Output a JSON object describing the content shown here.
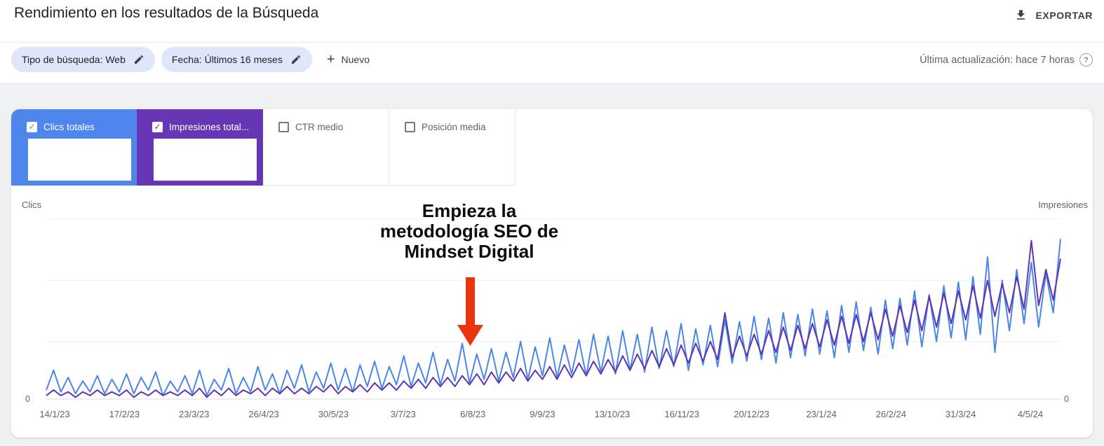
{
  "header": {
    "title": "Rendimiento en los resultados de la Búsqueda",
    "export_label": "EXPORTAR"
  },
  "filters": {
    "chips": [
      {
        "label": "Tipo de búsqueda: Web"
      },
      {
        "label": "Fecha: Últimos 16 meses"
      }
    ],
    "new_button_label": "Nuevo",
    "last_update": "Última actualización: hace 7 horas"
  },
  "metric_cards": [
    {
      "label": "Clics totales",
      "checked": true,
      "color": "#4e86ec",
      "value_redacted": true
    },
    {
      "label": "Impresiones total...",
      "checked": true,
      "color": "#6636b4",
      "value_redacted": true
    },
    {
      "label": "CTR medio",
      "checked": false
    },
    {
      "label": "Posición media",
      "checked": false
    }
  ],
  "chart_data": {
    "type": "line",
    "left_axis_label": "Clics",
    "right_axis_label": "Impresiones",
    "y_origin_label": "0",
    "ylim": [
      0,
      100
    ],
    "grid": true,
    "gridline_values": [
      0,
      32,
      66,
      100
    ],
    "x_labels": [
      "14/1/23",
      "17/2/23",
      "23/3/23",
      "26/4/23",
      "30/5/23",
      "3/7/23",
      "6/8/23",
      "9/9/23",
      "13/10/23",
      "16/11/23",
      "20/12/23",
      "23/1/24",
      "26/2/24",
      "31/3/24",
      "4/5/24"
    ],
    "series": [
      {
        "name": "Clics totales",
        "color": "#4a86e8",
        "values": [
          5,
          16,
          4,
          12,
          3,
          10,
          4,
          13,
          3,
          11,
          4,
          14,
          3,
          12,
          5,
          15,
          2,
          10,
          4,
          13,
          3,
          16,
          2,
          11,
          5,
          17,
          3,
          12,
          4,
          18,
          5,
          14,
          3,
          16,
          6,
          19,
          4,
          15,
          6,
          20,
          5,
          17,
          4,
          19,
          7,
          21,
          6,
          18,
          8,
          24,
          7,
          20,
          9,
          26,
          8,
          22,
          10,
          31,
          9,
          25,
          11,
          28,
          10,
          26,
          12,
          32,
          11,
          29,
          13,
          34,
          12,
          30,
          14,
          33,
          13,
          36,
          15,
          35,
          14,
          38,
          16,
          36,
          15,
          40,
          17,
          38,
          18,
          42,
          16,
          39,
          19,
          41,
          18,
          44,
          20,
          43,
          21,
          46,
          22,
          45,
          20,
          48,
          23,
          47,
          24,
          50,
          25,
          49,
          23,
          52,
          26,
          54,
          27,
          51,
          25,
          55,
          28,
          56,
          30,
          60,
          29,
          58,
          32,
          63,
          34,
          65,
          33,
          68,
          36,
          79,
          26,
          66,
          38,
          72,
          42,
          76,
          40,
          70,
          48,
          89
        ]
      },
      {
        "name": "Impresiones totales",
        "color": "#5e35b1",
        "values": [
          2,
          5,
          2,
          4,
          1,
          4,
          2,
          5,
          2,
          4,
          2,
          5,
          1,
          4,
          2,
          5,
          2,
          4,
          2,
          5,
          2,
          6,
          1,
          5,
          2,
          6,
          2,
          5,
          3,
          6,
          2,
          6,
          3,
          7,
          3,
          6,
          3,
          7,
          4,
          8,
          3,
          7,
          4,
          8,
          4,
          9,
          5,
          9,
          5,
          10,
          6,
          11,
          6,
          12,
          7,
          12,
          7,
          13,
          8,
          14,
          8,
          15,
          9,
          15,
          10,
          17,
          10,
          16,
          11,
          18,
          11,
          19,
          12,
          20,
          13,
          21,
          14,
          22,
          15,
          24,
          16,
          25,
          17,
          27,
          18,
          28,
          19,
          30,
          20,
          31,
          21,
          32,
          22,
          48,
          23,
          35,
          24,
          36,
          25,
          38,
          26,
          40,
          27,
          41,
          28,
          42,
          29,
          44,
          30,
          46,
          31,
          47,
          32,
          48,
          33,
          50,
          35,
          52,
          37,
          55,
          38,
          57,
          40,
          59,
          42,
          60,
          44,
          63,
          45,
          66,
          46,
          64,
          48,
          68,
          50,
          88,
          52,
          72,
          55,
          78
        ]
      }
    ],
    "annotation": {
      "text_lines": [
        "Empieza la",
        "metodología SEO de",
        "Mindset Digital"
      ],
      "arrow_color": "#e8350f"
    }
  }
}
